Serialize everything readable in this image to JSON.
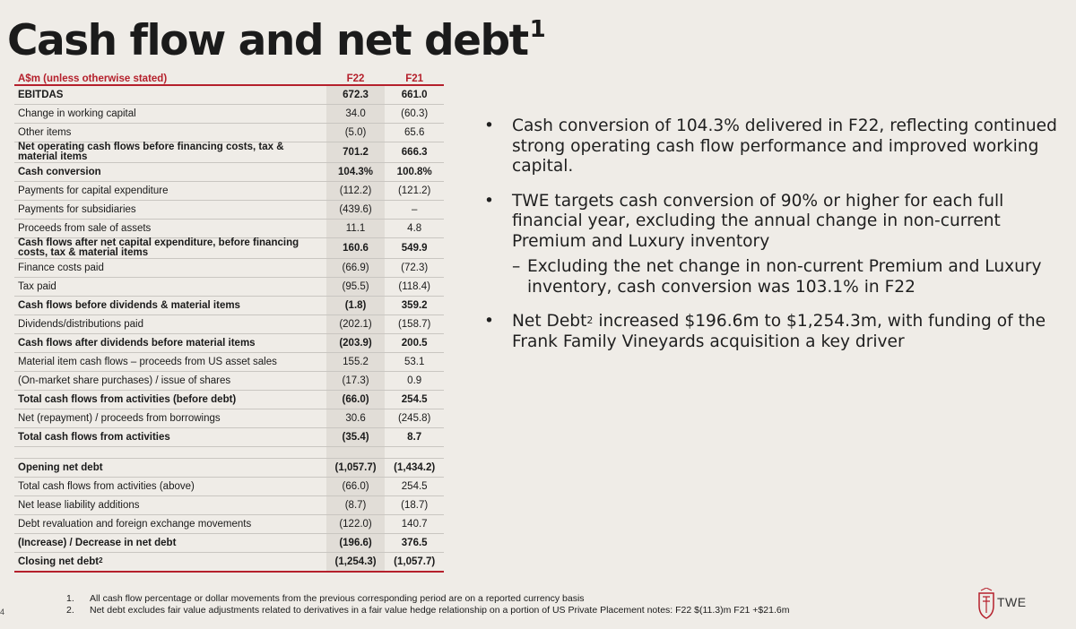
{
  "title": "Cash flow and net debt",
  "title_sup": "1",
  "table": {
    "header": {
      "label": "A$m (unless otherwise stated)",
      "col1": "F22",
      "col2": "F21"
    },
    "rows": [
      {
        "label": "EBITDAS",
        "f22": "672.3",
        "f21": "661.0",
        "bold": true
      },
      {
        "label": "Change in working capital",
        "f22": "34.0",
        "f21": "(60.3)",
        "bold": false
      },
      {
        "label": "Other items",
        "f22": "(5.0)",
        "f21": "65.6",
        "bold": false
      },
      {
        "label": "Net operating cash flows before financing costs, tax & material items",
        "f22": "701.2",
        "f21": "666.3",
        "bold": true
      },
      {
        "label": "Cash conversion",
        "f22": "104.3%",
        "f21": "100.8%",
        "bold": true
      },
      {
        "label": "Payments for capital expenditure",
        "f22": "(112.2)",
        "f21": "(121.2)",
        "bold": false
      },
      {
        "label": "Payments for subsidiaries",
        "f22": "(439.6)",
        "f21": "–",
        "bold": false
      },
      {
        "label": "Proceeds from sale of assets",
        "f22": "11.1",
        "f21": "4.8",
        "bold": false
      },
      {
        "label": "Cash flows after net capital expenditure, before financing costs, tax & material items",
        "f22": "160.6",
        "f21": "549.9",
        "bold": true
      },
      {
        "label": "Finance costs paid",
        "f22": "(66.9)",
        "f21": "(72.3)",
        "bold": false
      },
      {
        "label": "Tax paid",
        "f22": "(95.5)",
        "f21": "(118.4)",
        "bold": false
      },
      {
        "label": "Cash flows before dividends & material items",
        "f22": "(1.8)",
        "f21": "359.2",
        "bold": true
      },
      {
        "label": "Dividends/distributions paid",
        "f22": "(202.1)",
        "f21": "(158.7)",
        "bold": false
      },
      {
        "label": "Cash flows after dividends before material items",
        "f22": "(203.9)",
        "f21": "200.5",
        "bold": true
      },
      {
        "label": "Material item cash flows – proceeds from US asset sales",
        "f22": "155.2",
        "f21": "53.1",
        "bold": false
      },
      {
        "label": "(On-market share purchases) / issue of shares",
        "f22": "(17.3)",
        "f21": "0.9",
        "bold": false
      },
      {
        "label": "Total cash flows from activities (before debt)",
        "f22": "(66.0)",
        "f21": "254.5",
        "bold": true
      },
      {
        "label": "Net (repayment) / proceeds from borrowings",
        "f22": "30.6",
        "f21": "(245.8)",
        "bold": false
      },
      {
        "label": "Total cash flows from activities",
        "f22": "(35.4)",
        "f21": "8.7",
        "bold": true
      }
    ],
    "debt_rows": [
      {
        "label": "Opening net debt",
        "f22": "(1,057.7)",
        "f21": "(1,434.2)",
        "bold": true
      },
      {
        "label": "Total cash flows from activities (above)",
        "f22": "(66.0)",
        "f21": "254.5",
        "bold": false
      },
      {
        "label": "Net lease liability additions",
        "f22": "(8.7)",
        "f21": "(18.7)",
        "bold": false
      },
      {
        "label": "Debt revaluation and foreign exchange movements",
        "f22": "(122.0)",
        "f21": "140.7",
        "bold": false
      },
      {
        "label": "(Increase) / Decrease in net debt",
        "f22": "(196.6)",
        "f21": "376.5",
        "bold": true
      },
      {
        "label": "Closing net debt",
        "sup": "2",
        "f22": "(1,254.3)",
        "f21": "(1,057.7)",
        "bold": true
      }
    ]
  },
  "bullets": [
    {
      "text": "Cash conversion of 104.3% delivered in F22, reflecting continued strong operating cash flow performance and improved working capital."
    },
    {
      "text": "TWE targets cash conversion of 90% or higher for each full financial year, excluding the annual change in non-current Premium and Luxury inventory"
    },
    {
      "text": "Excluding the net change in non-current Premium and Luxury inventory, cash conversion was 103.1% in F22"
    },
    {
      "text_a": "Net Debt",
      "sup": "2",
      "text_b": " increased $196.6m to $1,254.3m, with funding of the Frank Family Vineyards acquisition a key driver"
    }
  ],
  "footnotes": [
    {
      "num": "1.",
      "text": "All cash flow percentage or dollar movements from the previous corresponding period are on a reported currency basis"
    },
    {
      "num": "2.",
      "text": "Net debt excludes fair value adjustments related to derivatives in a fair value hedge relationship on a portion of US Private Placement notes: F22 $(11.3)m F21 +$21.6m"
    }
  ],
  "page_number": "4",
  "logo_text": "TWE",
  "colors": {
    "accent": "#b5202c",
    "background": "#efece7",
    "shade": "#e1ddd7"
  }
}
